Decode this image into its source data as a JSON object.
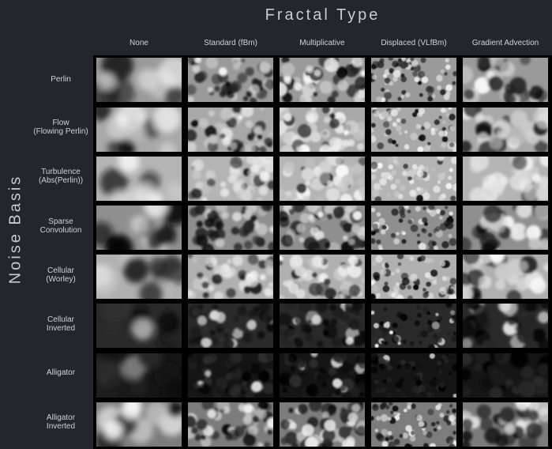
{
  "title_top": "Fractal Type",
  "title_left": "Noise Basis",
  "columns": [
    "None",
    "Standard (fBm)",
    "Multiplicative",
    "Displaced (VLfBm)",
    "Gradient Advection"
  ],
  "rows": [
    "Perlin",
    "Flow\n(Flowing Perlin)",
    "Turbulence\n(Abs(Perlin))",
    "Sparse\nConvolution",
    "Cellular\n(Worley)",
    "Cellular\nInverted",
    "Alligator",
    "Alligator\nInverted"
  ],
  "colors": {
    "background": "#24262b",
    "text": "#c9cbcf",
    "grid_border": "#000000"
  }
}
